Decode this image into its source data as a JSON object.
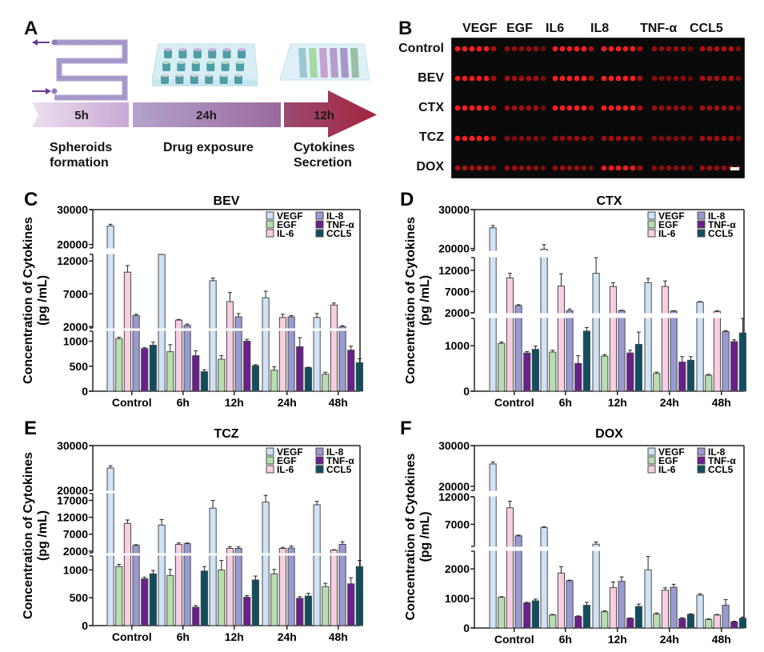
{
  "panel_a": {
    "letter": "A",
    "steps": [
      {
        "duration": "5h",
        "label_lines": [
          "Spheroids",
          "formation"
        ]
      },
      {
        "duration": "24h",
        "label_lines": [
          "Drug exposure"
        ]
      },
      {
        "duration": "12h",
        "label_lines": [
          "Cytokines",
          "Secretion"
        ]
      }
    ],
    "colors": {
      "seg1": "#e4d3ea",
      "seg2": "#a991c2",
      "seg3": "#a8395c",
      "chip": "#a99ccd",
      "arrow": "#6a3a8a"
    }
  },
  "panel_b": {
    "letter": "B",
    "columns": [
      "VEGF",
      "EGF",
      "IL6",
      "IL8",
      "TNF-α",
      "CCL5"
    ],
    "rows": [
      "Control",
      "BEV",
      "CTX",
      "TCZ",
      "DOX"
    ],
    "intensity": [
      [
        1.0,
        0.45,
        1.0,
        1.0,
        0.45,
        0.6
      ],
      [
        0.95,
        0.55,
        1.0,
        1.0,
        0.4,
        0.55
      ],
      [
        1.0,
        0.5,
        1.0,
        1.0,
        0.45,
        0.5
      ],
      [
        1.0,
        0.35,
        0.45,
        0.5,
        0.35,
        0.5
      ],
      [
        0.55,
        0.45,
        0.45,
        0.9,
        0.4,
        0.45
      ]
    ]
  },
  "chart_data": [
    {
      "panel": "C",
      "type": "bar",
      "title": "BEV",
      "ylabel": [
        "Concentration of Cytokines",
        "(pg /mL)"
      ],
      "categories": [
        "Control",
        "6h",
        "12h",
        "24h",
        "48h"
      ],
      "yticks": [
        0,
        500,
        1000,
        2000,
        7000,
        12000,
        20000,
        30000
      ],
      "ylim": [
        0,
        30000
      ],
      "axis_breaks": [
        [
          1200,
          1800
        ],
        [
          13000,
          19000
        ]
      ],
      "series": [
        {
          "name": "VEGF",
          "color": "#cfe3f4",
          "values": [
            25300,
            14800,
            9000,
            6400,
            3400
          ],
          "errors": [
            500,
            200,
            400,
            1000,
            600
          ]
        },
        {
          "name": "EGF",
          "color": "#b7ddb0",
          "values": [
            1050,
            790,
            640,
            420,
            340
          ],
          "errors": [
            30,
            140,
            70,
            70,
            40
          ]
        },
        {
          "name": "IL-6",
          "color": "#f6cfe0",
          "values": [
            10300,
            3000,
            5800,
            3400,
            5300
          ],
          "errors": [
            1000,
            100,
            1400,
            500,
            300
          ]
        },
        {
          "name": "IL-8",
          "color": "#9a9ad2",
          "values": [
            3700,
            2200,
            3500,
            3500,
            2000
          ],
          "errors": [
            200,
            200,
            500,
            200,
            150
          ]
        },
        {
          "name": "TNF-α",
          "color": "#6a1f8c",
          "values": [
            850,
            710,
            1000,
            890,
            820
          ],
          "errors": [
            20,
            100,
            40,
            180,
            80
          ]
        },
        {
          "name": "CCL5",
          "color": "#0f4e60",
          "values": [
            920,
            390,
            510,
            470,
            570
          ],
          "errors": [
            60,
            40,
            20,
            10,
            80
          ]
        }
      ]
    },
    {
      "panel": "D",
      "type": "bar",
      "title": "CTX",
      "ylabel": [
        "Concentration of Cytokines",
        "(pg /mL)"
      ],
      "categories": [
        "Control",
        "6h",
        "12h",
        "24h",
        "48h"
      ],
      "yticks": [
        0,
        1000,
        2000,
        7000,
        12000,
        20000,
        30000
      ],
      "ylim": [
        0,
        30000
      ],
      "axis_breaks": [
        [
          1600,
          2000
        ],
        [
          15000,
          19500
        ]
      ],
      "series": [
        {
          "name": "VEGF",
          "color": "#cfe3f4",
          "values": [
            25300,
            19800,
            11300,
            9100,
            4500
          ],
          "errors": [
            600,
            1200,
            3700,
            1000,
            150
          ]
        },
        {
          "name": "EGF",
          "color": "#b7ddb0",
          "values": [
            1050,
            860,
            770,
            390,
            350
          ],
          "errors": [
            30,
            40,
            30,
            30,
            20
          ]
        },
        {
          "name": "IL-6",
          "color": "#f6cfe0",
          "values": [
            10200,
            8300,
            8200,
            8200,
            2300
          ],
          "errors": [
            1100,
            2900,
            900,
            1300,
            200
          ]
        },
        {
          "name": "IL-8",
          "color": "#9a9ad2",
          "values": [
            3700,
            2500,
            2500,
            2400,
            1310
          ],
          "errors": [
            200,
            400,
            100,
            100,
            20
          ]
        },
        {
          "name": "TNF-α",
          "color": "#6a1f8c",
          "values": [
            840,
            610,
            840,
            640,
            1090
          ],
          "errors": [
            30,
            170,
            60,
            120,
            40
          ]
        },
        {
          "name": "CCL5",
          "color": "#0f4e60",
          "values": [
            920,
            1320,
            1030,
            680,
            1280
          ],
          "errors": [
            70,
            80,
            270,
            80,
            320
          ]
        }
      ]
    },
    {
      "panel": "E",
      "type": "bar",
      "title": "TCZ",
      "ylabel": [
        "Concentration of Cytokines",
        "(pg /mL)"
      ],
      "categories": [
        "Control",
        "6h",
        "12h",
        "24h",
        "48h"
      ],
      "yticks": [
        0,
        500,
        1000,
        2000,
        7000,
        12000,
        17000,
        20000,
        30000
      ],
      "ylim": [
        0,
        30000
      ],
      "axis_breaks": [
        [
          1250,
          1500
        ],
        [
          19000,
          20000
        ]
      ],
      "series": [
        {
          "name": "VEGF",
          "color": "#cfe3f4",
          "values": [
            25000,
            9700,
            14700,
            16500,
            15700
          ],
          "errors": [
            500,
            1600,
            2300,
            2000,
            1000
          ]
        },
        {
          "name": "EGF",
          "color": "#b7ddb0",
          "values": [
            1060,
            900,
            1000,
            930,
            700
          ],
          "errors": [
            40,
            110,
            170,
            80,
            60
          ]
        },
        {
          "name": "IL-6",
          "color": "#f6cfe0",
          "values": [
            10200,
            4000,
            2800,
            2800,
            2300
          ],
          "errors": [
            1000,
            400,
            500,
            300,
            100
          ]
        },
        {
          "name": "IL-8",
          "color": "#9a9ad2",
          "values": [
            3700,
            4200,
            2800,
            2900,
            4000
          ],
          "errors": [
            200,
            200,
            500,
            600,
            800
          ]
        },
        {
          "name": "TNF-α",
          "color": "#6a1f8c",
          "values": [
            840,
            330,
            510,
            490,
            750
          ],
          "errors": [
            30,
            30,
            30,
            30,
            110
          ]
        },
        {
          "name": "CCL5",
          "color": "#0f4e60",
          "values": [
            930,
            980,
            820,
            530,
            1060
          ],
          "errors": [
            60,
            80,
            70,
            50,
            110
          ]
        }
      ]
    },
    {
      "panel": "F",
      "type": "bar",
      "title": "DOX",
      "ylabel": [
        "Concentration of Cytokines",
        "(pg /mL)"
      ],
      "categories": [
        "Control",
        "6h",
        "12h",
        "24h",
        "48h"
      ],
      "yticks": [
        0,
        1000,
        2000,
        7000,
        12000,
        20000,
        30000
      ],
      "ylim": [
        0,
        30000
      ],
      "axis_breaks": [
        [
          2000,
          3000
        ],
        [
          12000,
          19000
        ]
      ],
      "series": [
        {
          "name": "VEGF",
          "color": "#cfe3f4",
          "values": [
            25500,
            6400,
            3400,
            1970,
            1110
          ],
          "errors": [
            500,
            200,
            400,
            450,
            50
          ]
        },
        {
          "name": "EGF",
          "color": "#b7ddb0",
          "values": [
            1040,
            440,
            550,
            470,
            290
          ],
          "errors": [
            20,
            20,
            30,
            40,
            20
          ]
        },
        {
          "name": "IL-6",
          "color": "#f6cfe0",
          "values": [
            10000,
            1860,
            1370,
            1280,
            440
          ],
          "errors": [
            1200,
            220,
            190,
            80,
            20
          ]
        },
        {
          "name": "IL-8",
          "color": "#9a9ad2",
          "values": [
            4900,
            1600,
            1580,
            1380,
            770
          ],
          "errors": [
            150,
            20,
            150,
            100,
            190
          ]
        },
        {
          "name": "TNF-α",
          "color": "#6a1f8c",
          "values": [
            850,
            390,
            330,
            320,
            210
          ],
          "errors": [
            20,
            20,
            10,
            30,
            20
          ]
        },
        {
          "name": "CCL5",
          "color": "#0f4e60",
          "values": [
            920,
            770,
            730,
            460,
            330
          ],
          "errors": [
            60,
            100,
            80,
            20,
            40
          ]
        }
      ]
    }
  ],
  "panels_cdef_letters": [
    "C",
    "D",
    "E",
    "F"
  ]
}
